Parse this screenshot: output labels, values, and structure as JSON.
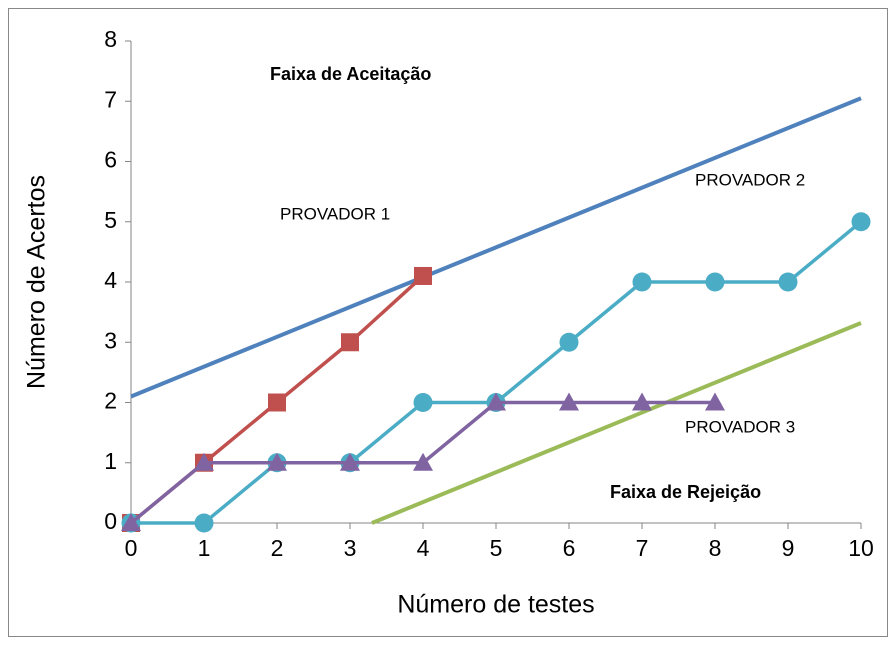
{
  "chart_data": {
    "type": "line",
    "xlabel": "Número de testes",
    "ylabel": "Número de Acertos",
    "annotations": [
      "Faixa de Aceitação",
      "Faixa de Rejeição"
    ],
    "xlim": [
      0,
      10
    ],
    "xticks": [
      0,
      1,
      2,
      3,
      4,
      5,
      6,
      7,
      8,
      9,
      10
    ],
    "ylim": [
      0,
      8
    ],
    "yticks": [
      0,
      1,
      2,
      3,
      4,
      5,
      6,
      7,
      8
    ],
    "grid": false,
    "series": [
      {
        "color": "#4f81bd",
        "x": [
          0,
          10
        ],
        "values": [
          2.1,
          7.05
        ]
      },
      {
        "color": "#9bbb59",
        "x": [
          3.3,
          10
        ],
        "values": [
          0,
          3.32
        ]
      },
      {
        "name": "PROVADOR 1",
        "color": "#c0504d",
        "marker": "square",
        "x": [
          0,
          1,
          2,
          3,
          4
        ],
        "values": [
          0,
          1,
          2,
          3,
          4.1
        ]
      },
      {
        "name": "PROVADOR 2",
        "color": "#4bacc6",
        "marker": "circle",
        "x": [
          0,
          1,
          2,
          3,
          4,
          5,
          6,
          7,
          8,
          9,
          10
        ],
        "values": [
          0,
          0,
          1,
          1,
          2,
          2,
          3,
          4,
          4,
          4,
          5
        ]
      },
      {
        "name": "PROVADOR 3",
        "color": "#8064a2",
        "marker": "triangle",
        "x": [
          0,
          1,
          2,
          3,
          4,
          5,
          6,
          7,
          8
        ],
        "values": [
          0,
          1,
          1,
          1,
          1,
          2,
          2,
          2,
          2
        ]
      }
    ]
  }
}
